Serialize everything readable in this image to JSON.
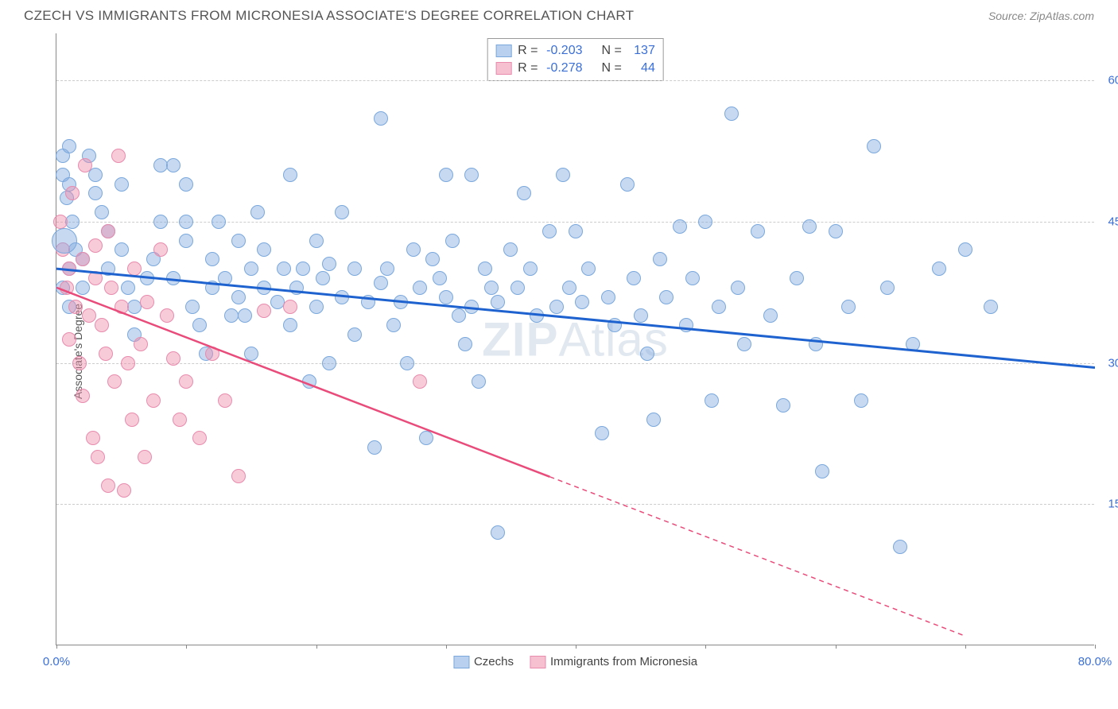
{
  "title": "CZECH VS IMMIGRANTS FROM MICRONESIA ASSOCIATE'S DEGREE CORRELATION CHART",
  "source": "Source: ZipAtlas.com",
  "watermark": {
    "bold": "ZIP",
    "rest": "Atlas"
  },
  "y_axis_title": "Associate's Degree",
  "chart": {
    "type": "scatter",
    "xlim": [
      0,
      80
    ],
    "ylim": [
      0,
      65
    ],
    "x_ticks": [
      0,
      10,
      20,
      30,
      40,
      50,
      60,
      70,
      80
    ],
    "x_tick_labels": {
      "0": "0.0%",
      "80": "80.0%"
    },
    "y_gridlines": [
      15,
      30,
      45,
      60
    ],
    "y_tick_labels": {
      "15": "15.0%",
      "30": "30.0%",
      "45": "45.0%",
      "60": "60.0%"
    },
    "background_color": "#ffffff",
    "grid_color": "#cccccc",
    "axis_color": "#888888",
    "tick_label_color": "#3a6fd8",
    "point_radius": 9,
    "series": [
      {
        "name": "Czechs",
        "color_fill": "rgba(130,170,225,0.45)",
        "color_stroke": "#7aa8dd",
        "trend_color": "#1e62d0",
        "trend_width": 3,
        "trend": {
          "x1": 0,
          "y1": 40,
          "x2": 80,
          "y2": 29.5,
          "dash_from_x": null
        },
        "r_value": "-0.203",
        "n_value": "137",
        "points": [
          [
            0.5,
            52
          ],
          [
            0.5,
            50
          ],
          [
            1,
            49
          ],
          [
            1,
            53
          ],
          [
            0.8,
            47.5
          ],
          [
            1.2,
            45
          ],
          [
            1.5,
            42
          ],
          [
            1,
            40
          ],
          [
            2,
            41
          ],
          [
            2.5,
            52
          ],
          [
            0.5,
            38
          ],
          [
            1,
            36
          ],
          [
            2,
            38
          ],
          [
            3,
            50
          ],
          [
            3,
            48
          ],
          [
            3.5,
            46
          ],
          [
            4,
            44
          ],
          [
            4,
            40
          ],
          [
            5,
            49
          ],
          [
            5,
            42
          ],
          [
            5.5,
            38
          ],
          [
            6,
            36
          ],
          [
            6,
            33
          ],
          [
            7,
            39
          ],
          [
            7.5,
            41
          ],
          [
            8,
            45
          ],
          [
            8,
            51
          ],
          [
            9,
            51
          ],
          [
            9,
            39
          ],
          [
            10,
            49
          ],
          [
            10,
            45
          ],
          [
            10,
            43
          ],
          [
            10.5,
            36
          ],
          [
            11,
            34
          ],
          [
            11.5,
            31
          ],
          [
            12,
            41
          ],
          [
            12,
            38
          ],
          [
            12.5,
            45
          ],
          [
            13,
            39
          ],
          [
            13.5,
            35
          ],
          [
            14,
            37
          ],
          [
            14,
            43
          ],
          [
            14.5,
            35
          ],
          [
            15,
            40
          ],
          [
            15,
            31
          ],
          [
            15.5,
            46
          ],
          [
            16,
            38
          ],
          [
            16,
            42
          ],
          [
            17,
            36.5
          ],
          [
            17.5,
            40
          ],
          [
            18,
            50
          ],
          [
            18,
            34
          ],
          [
            18.5,
            38
          ],
          [
            19,
            40
          ],
          [
            19.5,
            28
          ],
          [
            20,
            43
          ],
          [
            20,
            36
          ],
          [
            20.5,
            39
          ],
          [
            21,
            40.5
          ],
          [
            21,
            30
          ],
          [
            22,
            46
          ],
          [
            22,
            37
          ],
          [
            23,
            40
          ],
          [
            23,
            33
          ],
          [
            24,
            36.5
          ],
          [
            24.5,
            21
          ],
          [
            25,
            56
          ],
          [
            25,
            38.5
          ],
          [
            25.5,
            40
          ],
          [
            26,
            34
          ],
          [
            26.5,
            36.5
          ],
          [
            27,
            30
          ],
          [
            27.5,
            42
          ],
          [
            28,
            38
          ],
          [
            28.5,
            22
          ],
          [
            29,
            41
          ],
          [
            29.5,
            39
          ],
          [
            30,
            50
          ],
          [
            30,
            37
          ],
          [
            30.5,
            43
          ],
          [
            31,
            35
          ],
          [
            31.5,
            32
          ],
          [
            32,
            50
          ],
          [
            32,
            36
          ],
          [
            32.5,
            28
          ],
          [
            33,
            40
          ],
          [
            33.5,
            38
          ],
          [
            34,
            36.5
          ],
          [
            34,
            12
          ],
          [
            35,
            42
          ],
          [
            35.5,
            38
          ],
          [
            36,
            48
          ],
          [
            36.5,
            40
          ],
          [
            37,
            35
          ],
          [
            38,
            44
          ],
          [
            38.5,
            36
          ],
          [
            39,
            50
          ],
          [
            39.5,
            38
          ],
          [
            40,
            44
          ],
          [
            40.5,
            36.5
          ],
          [
            41,
            40
          ],
          [
            42,
            22.5
          ],
          [
            42.5,
            37
          ],
          [
            43,
            34
          ],
          [
            44,
            49
          ],
          [
            44.5,
            39
          ],
          [
            45,
            35
          ],
          [
            45.5,
            31
          ],
          [
            46,
            24
          ],
          [
            46.5,
            41
          ],
          [
            47,
            37
          ],
          [
            48,
            44.5
          ],
          [
            48.5,
            34
          ],
          [
            49,
            39
          ],
          [
            50,
            45
          ],
          [
            50.5,
            26
          ],
          [
            51,
            36
          ],
          [
            52,
            56.5
          ],
          [
            52.5,
            38
          ],
          [
            53,
            32
          ],
          [
            54,
            44
          ],
          [
            55,
            35
          ],
          [
            56,
            25.5
          ],
          [
            57,
            39
          ],
          [
            58,
            44.5
          ],
          [
            58.5,
            32
          ],
          [
            59,
            18.5
          ],
          [
            60,
            44
          ],
          [
            61,
            36
          ],
          [
            62,
            26
          ],
          [
            63,
            53
          ],
          [
            64,
            38
          ],
          [
            65,
            10.5
          ],
          [
            66,
            32
          ],
          [
            68,
            40
          ],
          [
            70,
            42
          ],
          [
            72,
            36
          ]
        ]
      },
      {
        "name": "Immigrants from Micronesia",
        "color_fill": "rgba(240,140,170,0.45)",
        "color_stroke": "#e88bad",
        "trend_color": "#e94b7a",
        "trend_width": 2.5,
        "trend": {
          "x1": 0,
          "y1": 38,
          "x2": 70,
          "y2": 1,
          "dash_from_x": 38
        },
        "r_value": "-0.278",
        "n_value": "44",
        "points": [
          [
            0.3,
            45
          ],
          [
            0.5,
            42
          ],
          [
            0.8,
            38
          ],
          [
            1,
            40
          ],
          [
            1,
            32.5
          ],
          [
            1.2,
            48
          ],
          [
            1.5,
            36
          ],
          [
            1.8,
            30
          ],
          [
            2,
            41
          ],
          [
            2,
            26.5
          ],
          [
            2.2,
            51
          ],
          [
            2.5,
            35
          ],
          [
            2.8,
            22
          ],
          [
            3,
            42.5
          ],
          [
            3,
            39
          ],
          [
            3.2,
            20
          ],
          [
            3.5,
            34
          ],
          [
            3.8,
            31
          ],
          [
            4,
            44
          ],
          [
            4,
            17
          ],
          [
            4.2,
            38
          ],
          [
            4.5,
            28
          ],
          [
            4.8,
            52
          ],
          [
            5,
            36
          ],
          [
            5.2,
            16.5
          ],
          [
            5.5,
            30
          ],
          [
            5.8,
            24
          ],
          [
            6,
            40
          ],
          [
            6.5,
            32
          ],
          [
            6.8,
            20
          ],
          [
            7,
            36.5
          ],
          [
            7.5,
            26
          ],
          [
            8,
            42
          ],
          [
            8.5,
            35
          ],
          [
            9,
            30.5
          ],
          [
            9.5,
            24
          ],
          [
            10,
            28
          ],
          [
            11,
            22
          ],
          [
            12,
            31
          ],
          [
            13,
            26
          ],
          [
            14,
            18
          ],
          [
            16,
            35.5
          ],
          [
            18,
            36
          ],
          [
            28,
            28
          ]
        ]
      },
      {
        "name": "big_point",
        "color_fill": "rgba(130,170,225,0.45)",
        "color_stroke": "#7aa8dd",
        "points": [
          [
            0.6,
            43
          ]
        ],
        "radius_override": 16
      }
    ]
  },
  "stats_legend": {
    "rows": [
      {
        "swatch_fill": "rgba(130,170,225,0.55)",
        "swatch_border": "#7aa8dd",
        "r_label": "R =",
        "r": "-0.203",
        "n_label": "N =",
        "n": "137"
      },
      {
        "swatch_fill": "rgba(240,140,170,0.55)",
        "swatch_border": "#e88bad",
        "r_label": "R =",
        "r": "-0.278",
        "n_label": "N =",
        "n": "44"
      }
    ]
  },
  "bottom_legend": {
    "items": [
      {
        "swatch_fill": "rgba(130,170,225,0.55)",
        "swatch_border": "#7aa8dd",
        "label": "Czechs"
      },
      {
        "swatch_fill": "rgba(240,140,170,0.55)",
        "swatch_border": "#e88bad",
        "label": "Immigrants from Micronesia"
      }
    ]
  }
}
